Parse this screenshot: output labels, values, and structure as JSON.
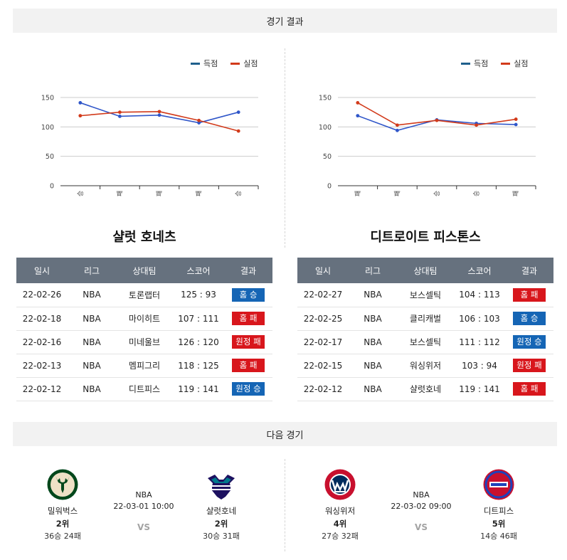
{
  "sections": {
    "results_title": "경기 결과",
    "next_title": "다음 경기"
  },
  "colors": {
    "scored": "#2f56c9",
    "conceded": "#d23a1a",
    "scored_legend": "#1f5f8c",
    "conceded_legend": "#d23a1a",
    "home_badge": "#1565b5",
    "loss_badge": "#d8161c",
    "header_bg": "#66717e"
  },
  "legend": {
    "scored": "득점",
    "conceded": "실점"
  },
  "chart_data": [
    {
      "type": "line",
      "categories": [
        "승",
        "패",
        "패",
        "패",
        "승"
      ],
      "yticks": [
        "150",
        "100",
        "50",
        "0"
      ],
      "ylim": [
        0,
        150
      ],
      "grid": true,
      "legend_position": "top-right",
      "series": [
        {
          "name": "득점",
          "values": [
            141,
            118,
            120,
            107,
            125
          ]
        },
        {
          "name": "실점",
          "values": [
            119,
            125,
            126,
            111,
            93
          ]
        }
      ]
    },
    {
      "type": "line",
      "categories": [
        "패",
        "패",
        "승",
        "승",
        "패"
      ],
      "yticks": [
        "150",
        "100",
        "50",
        "0"
      ],
      "ylim": [
        0,
        150
      ],
      "grid": true,
      "legend_position": "top-right",
      "series": [
        {
          "name": "득점",
          "values": [
            119,
            94,
            112,
            106,
            104
          ]
        },
        {
          "name": "실점",
          "values": [
            141,
            103,
            111,
            103,
            113
          ]
        }
      ]
    }
  ],
  "table_headers": [
    "일시",
    "리그",
    "상대팀",
    "스코어",
    "결과"
  ],
  "teams": [
    {
      "title": "샬럿 호네츠",
      "rows": [
        {
          "date": "22-02-26",
          "league": "NBA",
          "opponent": "토론랩터",
          "score": "125 : 93",
          "result": "홈 승",
          "kind": "home"
        },
        {
          "date": "22-02-18",
          "league": "NBA",
          "opponent": "마이히트",
          "score": "107 : 111",
          "result": "홈 패",
          "kind": "loss"
        },
        {
          "date": "22-02-16",
          "league": "NBA",
          "opponent": "미네울브",
          "score": "126 : 120",
          "result": "원정 패",
          "kind": "loss"
        },
        {
          "date": "22-02-13",
          "league": "NBA",
          "opponent": "멤피그리",
          "score": "118 : 125",
          "result": "홈 패",
          "kind": "loss"
        },
        {
          "date": "22-02-12",
          "league": "NBA",
          "opponent": "디트피스",
          "score": "119 : 141",
          "result": "원정 승",
          "kind": "home"
        }
      ]
    },
    {
      "title": "디트로이트 피스톤스",
      "rows": [
        {
          "date": "22-02-27",
          "league": "NBA",
          "opponent": "보스셀틱",
          "score": "104 : 113",
          "result": "홈 패",
          "kind": "loss"
        },
        {
          "date": "22-02-25",
          "league": "NBA",
          "opponent": "클리캐벌",
          "score": "106 : 103",
          "result": "홈 승",
          "kind": "home"
        },
        {
          "date": "22-02-17",
          "league": "NBA",
          "opponent": "보스셀틱",
          "score": "111 : 112",
          "result": "원정 승",
          "kind": "home"
        },
        {
          "date": "22-02-15",
          "league": "NBA",
          "opponent": "워싱위저",
          "score": "103 : 94",
          "result": "원정 패",
          "kind": "loss"
        },
        {
          "date": "22-02-12",
          "league": "NBA",
          "opponent": "샬럿호네",
          "score": "119 : 141",
          "result": "홈 패",
          "kind": "loss"
        }
      ]
    }
  ],
  "next_games": [
    {
      "league": "NBA",
      "datetime": "22-03-01 10:00",
      "vs": "VS",
      "home": {
        "name": "밀워벅스",
        "rank": "2위",
        "record": "36승 24패",
        "logo_icon": "bucks-logo-icon"
      },
      "away": {
        "name": "샬럿호네",
        "rank": "2위",
        "record": "30승 31패",
        "logo_icon": "hornets-logo-icon"
      }
    },
    {
      "league": "NBA",
      "datetime": "22-03-02 09:00",
      "vs": "VS",
      "home": {
        "name": "워싱위저",
        "rank": "4위",
        "record": "27승 32패",
        "logo_icon": "wizards-logo-icon"
      },
      "away": {
        "name": "디트피스",
        "rank": "5위",
        "record": "14승 46패",
        "logo_icon": "pistons-logo-icon"
      }
    }
  ]
}
